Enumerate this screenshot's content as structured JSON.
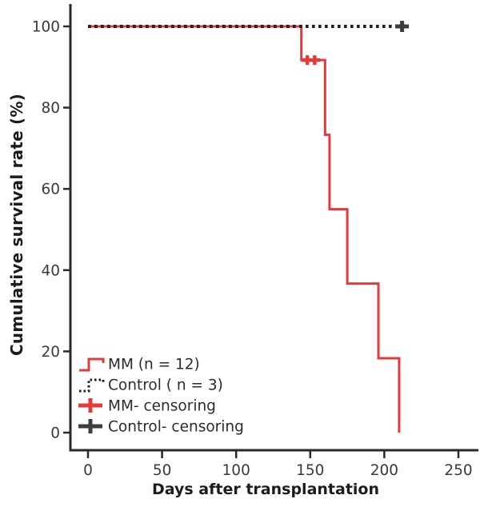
{
  "chart_data": {
    "type": "line",
    "subtype": "kaplan_meier_step",
    "title": "",
    "xlabel": "Days after transplantation",
    "ylabel": "Cumulative survival rate (%)",
    "xticks": [
      0,
      50,
      100,
      150,
      200,
      250
    ],
    "yticks": [
      0,
      20,
      40,
      60,
      80,
      100
    ],
    "xlim": [
      0,
      263
    ],
    "ylim": [
      0,
      106
    ],
    "grid": false,
    "legend_position": "lower-left",
    "background": "#ffffff",
    "axis_color": "#2a2a2a",
    "tick_label_color": "#3a3a3a",
    "series": [
      {
        "name": "MM (n = 12)",
        "color": "#e23b3c",
        "style": "solid",
        "steps": [
          [
            0,
            100
          ],
          [
            144,
            100
          ],
          [
            144,
            91.7
          ],
          [
            160,
            91.7
          ],
          [
            160,
            73.3
          ],
          [
            163,
            73.3
          ],
          [
            163,
            55.0
          ],
          [
            175,
            55.0
          ],
          [
            175,
            36.7
          ],
          [
            196,
            36.7
          ],
          [
            196,
            18.3
          ],
          [
            210,
            18.3
          ],
          [
            210,
            0
          ]
        ],
        "censoring": [
          [
            148,
            91.7
          ],
          [
            153,
            91.7
          ]
        ],
        "censor_color": "#e23b3c"
      },
      {
        "name": "Control ( n = 3)",
        "color": "#1f1f1f",
        "style": "dotted",
        "steps": [
          [
            0,
            100
          ],
          [
            212,
            100
          ]
        ],
        "censoring": [
          [
            212,
            100
          ]
        ],
        "censor_color": "#3d3d3d"
      }
    ],
    "legend": [
      {
        "label": "MM (n = 12)",
        "symbol": "step-line",
        "color": "#e23b3c",
        "dashed": false
      },
      {
        "label": "Control ( n = 3)",
        "symbol": "step-line",
        "color": "#1f1f1f",
        "dashed": true
      },
      {
        "label": "MM- censoring",
        "symbol": "plus",
        "color": "#e23b3c",
        "dashed": false
      },
      {
        "label": "Control- censoring",
        "symbol": "plus",
        "color": "#3d3d3d",
        "dashed": false
      }
    ]
  }
}
